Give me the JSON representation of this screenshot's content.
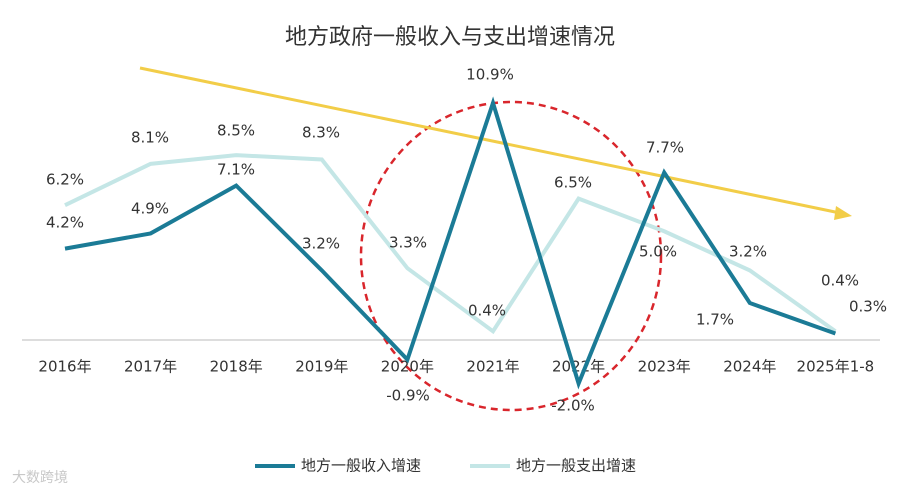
{
  "chart_data": {
    "type": "line",
    "title": "地方政府一般收入与支出增速情况",
    "categories": [
      "2016年",
      "2017年",
      "2018年",
      "2019年",
      "2020年",
      "2021年",
      "2022年",
      "2023年",
      "2024年",
      "2025年1-8"
    ],
    "series": [
      {
        "name": "地方一般收入增速",
        "color": "#1b7b96",
        "values": [
          4.2,
          4.9,
          7.1,
          3.2,
          -0.9,
          10.9,
          -2.0,
          7.7,
          1.7,
          0.3
        ],
        "value_labels": [
          "4.2%",
          "4.9%",
          "7.1%",
          "3.2%",
          "-0.9%",
          "10.9%",
          "-2.0%",
          "7.7%",
          "1.7%",
          "0.3%"
        ]
      },
      {
        "name": "地方一般支出增速",
        "color": "#c4e6e6",
        "values": [
          6.2,
          8.1,
          8.5,
          8.3,
          3.3,
          0.4,
          6.5,
          5.0,
          3.2,
          0.4
        ],
        "value_labels": [
          "6.2%",
          "8.1%",
          "8.5%",
          "8.3%",
          "3.3%",
          "0.4%",
          "6.5%",
          "5.0%",
          "3.2%",
          "0.4%"
        ]
      }
    ],
    "watermark": "大数跨境"
  }
}
